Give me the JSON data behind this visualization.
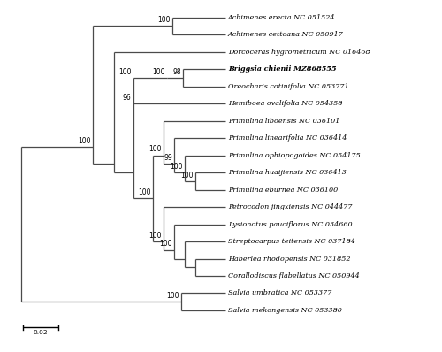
{
  "figsize": [
    5.0,
    3.98
  ],
  "dpi": 100,
  "background": "#ffffff",
  "taxa": [
    "Achimenes erecta NC 051524",
    "Achimenes cettoana NC 050917",
    "Dorcoceras hygrometricum NC 016468",
    "Briggsia chienii MZ868555",
    "Oreocharis cotinifolia NC 053771",
    "Hemiboea ovalifolia NC 054358",
    "Primulina liboensis NC 036101",
    "Primulina linearifolia NC 036414",
    "Primulina ophiopogoides NC 054175",
    "Primulina huaijiensis NC 036413",
    "Primulina eburnea NC 036100",
    "Petrocodon jingxiensis NC 044477",
    "Lysionotus pauciflorus NC 034660",
    "Streptocarpus teitensis NC 037184",
    "Haberlea rhodopensis NC 031852",
    "Corallodiscus flabellatus NC 050944",
    "Salvia umbratica NC 053377",
    "Salvia mekongensis NC 053380"
  ],
  "bold_taxa": [
    "Briggsia chienii MZ868555"
  ],
  "line_color": "#4a4a4a",
  "line_width": 0.9,
  "font_size": 5.8,
  "bootstrap_font_size": 5.5,
  "scale_bar_label": "0.02"
}
